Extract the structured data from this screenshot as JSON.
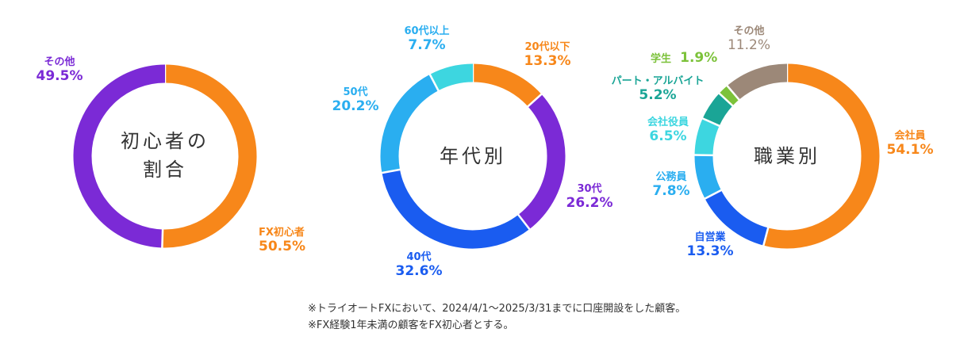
{
  "colors": {
    "orange": "#F7871A",
    "purple": "#7B2AD6",
    "blue": "#1A5CF0",
    "lightblue": "#2AAEF0",
    "cyan": "#3DD6E0",
    "teal": "#1AA596",
    "green": "#7CC23A",
    "taupe": "#9C8878"
  },
  "chart_data": [
    {
      "type": "pie",
      "title_lines": [
        "初心者の",
        "割合"
      ],
      "slices": [
        {
          "name": "FX初心者",
          "value": 50.5,
          "display": "50.5%",
          "color": "#F7871A"
        },
        {
          "name": "その他",
          "value": 49.5,
          "display": "49.5%",
          "color": "#7B2AD6"
        }
      ]
    },
    {
      "type": "pie",
      "title_lines": [
        "年代別"
      ],
      "slices": [
        {
          "name": "20代以下",
          "value": 13.3,
          "display": "13.3%",
          "color": "#F7871A"
        },
        {
          "name": "30代",
          "value": 26.2,
          "display": "26.2%",
          "color": "#7B2AD6"
        },
        {
          "name": "40代",
          "value": 32.6,
          "display": "32.6%",
          "color": "#1A5CF0"
        },
        {
          "name": "50代",
          "value": 20.2,
          "display": "20.2%",
          "color": "#2AAEF0"
        },
        {
          "name": "60代以上",
          "value": 7.7,
          "display": "7.7%",
          "color": "#3DD6E0"
        }
      ]
    },
    {
      "type": "pie",
      "title_lines": [
        "職業別"
      ],
      "slices": [
        {
          "name": "会社員",
          "value": 54.1,
          "display": "54.1%",
          "color": "#F7871A"
        },
        {
          "name": "自営業",
          "value": 13.3,
          "display": "13.3%",
          "color": "#1A5CF0"
        },
        {
          "name": "公務員",
          "value": 7.8,
          "display": "7.8%",
          "color": "#2AAEF0"
        },
        {
          "name": "会社役員",
          "value": 6.5,
          "display": "6.5%",
          "color": "#3DD6E0"
        },
        {
          "name": "パート・アルバイト",
          "value": 5.2,
          "display": "5.2%",
          "color": "#1AA596"
        },
        {
          "name": "学生",
          "value": 1.9,
          "display": "1.9%",
          "color": "#7CC23A"
        },
        {
          "name": "その他",
          "value": 11.2,
          "display": "11.2%",
          "color": "#9C8878"
        }
      ]
    }
  ],
  "notes": [
    "※トライオートFXにおいて、2024/4/1〜2025/3/31までに口座開設をした顧客。",
    "※FX経験1年未満の顧客をFX初心者とする。"
  ]
}
